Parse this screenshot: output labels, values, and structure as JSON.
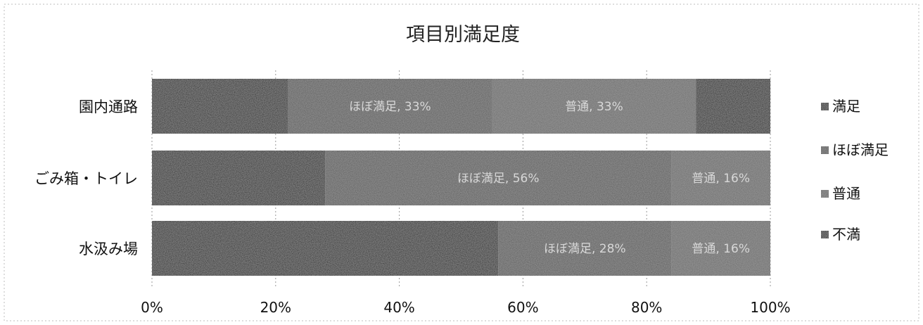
{
  "chart_data": {
    "type": "bar",
    "orientation": "horizontal",
    "stacked": "percent",
    "title": "項目別満足度",
    "xlabel": "",
    "ylabel": "",
    "xlim": [
      0,
      100
    ],
    "x_ticks": [
      "0%",
      "20%",
      "40%",
      "60%",
      "80%",
      "100%"
    ],
    "categories": [
      "園内通路",
      "ごみ箱・トイレ",
      "水汲み場"
    ],
    "series": [
      {
        "name": "満足",
        "color": "#0a0a0a",
        "values": [
          22,
          28,
          56
        ],
        "value_labels": [
          "",
          "",
          ""
        ]
      },
      {
        "name": "ほぼ満足",
        "color": "#555555",
        "values": [
          33,
          56,
          28
        ],
        "value_labels": [
          "ほぼ満足, 33%",
          "ほぼ満足, 56%",
          "ほぼ満足, 28%"
        ]
      },
      {
        "name": "普通",
        "color": "#666666",
        "values": [
          33,
          16,
          16
        ],
        "value_labels": [
          "普通, 33%",
          "普通, 16%",
          "普通, 16%"
        ]
      },
      {
        "name": "不満",
        "color": "#0a0a0a",
        "values": [
          12,
          0,
          0
        ],
        "value_labels": [
          "",
          "",
          ""
        ]
      }
    ],
    "grid": true,
    "legend": "right"
  }
}
